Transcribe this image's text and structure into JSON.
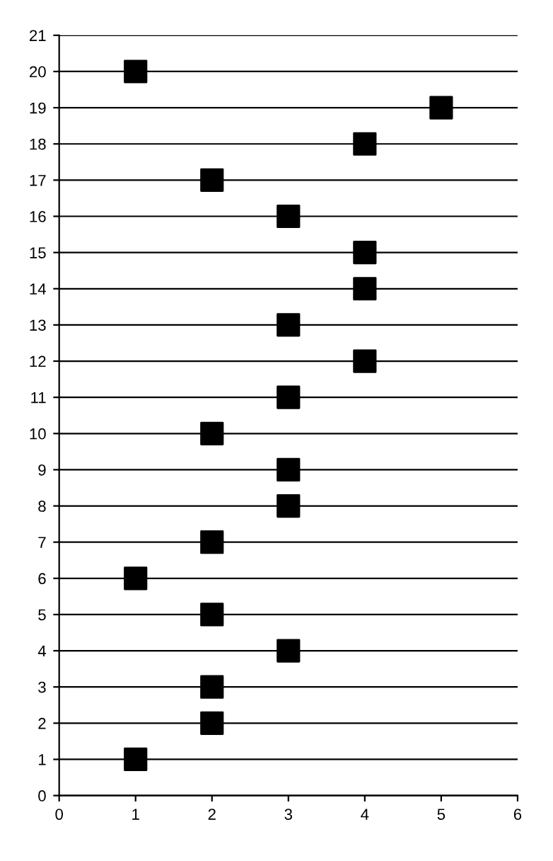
{
  "chart_data": {
    "type": "scatter",
    "x": [
      1,
      5,
      4,
      2,
      3,
      4,
      4,
      3,
      4,
      3,
      2,
      3,
      3,
      2,
      1,
      2,
      3,
      2,
      2,
      1
    ],
    "values": [
      20,
      19,
      18,
      17,
      16,
      15,
      14,
      13,
      12,
      11,
      10,
      9,
      8,
      7,
      6,
      5,
      4,
      3,
      2,
      1
    ],
    "color": "#000000",
    "marker": "square",
    "xlim": [
      0,
      6
    ],
    "xticks": [
      0,
      1,
      2,
      3,
      4,
      5,
      6
    ],
    "ylim": [
      0,
      21
    ],
    "yticks": [
      0,
      1,
      2,
      3,
      4,
      5,
      6,
      7,
      8,
      9,
      10,
      11,
      12,
      13,
      14,
      15,
      16,
      17,
      18,
      19,
      20,
      21
    ],
    "grid": "y",
    "legend": false
  }
}
